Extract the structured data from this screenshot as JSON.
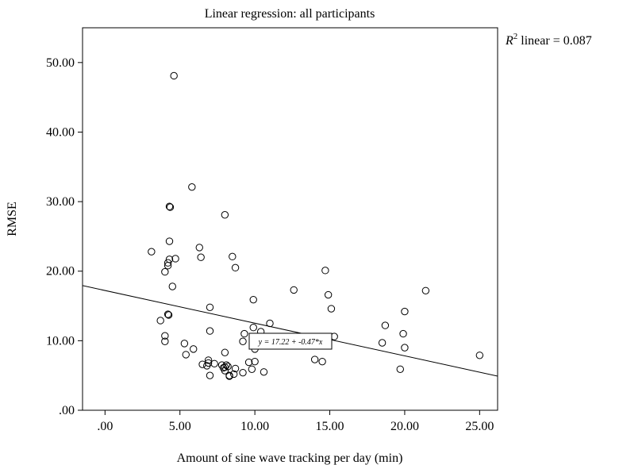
{
  "chart_data": {
    "type": "scatter",
    "title": "Linear regression: all participants",
    "xlabel": "Amount of sine wave tracking per day (min)",
    "ylabel": "RMSE",
    "xlim": [
      -1.5,
      26.2
    ],
    "ylim": [
      0,
      55.0
    ],
    "xticks": [
      ".00",
      "5.00",
      "10.00",
      "15.00",
      "20.00",
      "25.00"
    ],
    "xtick_values": [
      0,
      5,
      10,
      15,
      20,
      25
    ],
    "yticks": [
      ".00",
      "10.00",
      "20.00",
      "30.00",
      "40.00",
      "50.00"
    ],
    "ytick_values": [
      0,
      10,
      20,
      30,
      40,
      50
    ],
    "grid": false,
    "fit_line": {
      "intercept": 17.22,
      "slope": -0.47
    },
    "r2_label": {
      "symbol": "R",
      "superscript": "2",
      "text": " linear = 0.087"
    },
    "equation_label": "y = 17.22 + -0.47*x",
    "points": [
      {
        "x": 4.6,
        "y": 48.1
      },
      {
        "x": 5.8,
        "y": 32.1
      },
      {
        "x": 4.3,
        "y": 29.3
      },
      {
        "x": 4.35,
        "y": 29.2
      },
      {
        "x": 8.0,
        "y": 28.1
      },
      {
        "x": 4.3,
        "y": 24.3
      },
      {
        "x": 6.3,
        "y": 23.4
      },
      {
        "x": 3.1,
        "y": 22.8
      },
      {
        "x": 8.5,
        "y": 22.1
      },
      {
        "x": 6.4,
        "y": 22.0
      },
      {
        "x": 4.7,
        "y": 21.8
      },
      {
        "x": 4.3,
        "y": 21.7
      },
      {
        "x": 4.2,
        "y": 21.2
      },
      {
        "x": 4.2,
        "y": 20.8
      },
      {
        "x": 8.7,
        "y": 20.5
      },
      {
        "x": 14.7,
        "y": 20.1
      },
      {
        "x": 4.0,
        "y": 19.9
      },
      {
        "x": 4.5,
        "y": 17.8
      },
      {
        "x": 12.6,
        "y": 17.3
      },
      {
        "x": 21.4,
        "y": 17.2
      },
      {
        "x": 14.9,
        "y": 16.6
      },
      {
        "x": 9.9,
        "y": 15.9
      },
      {
        "x": 7.0,
        "y": 14.8
      },
      {
        "x": 15.1,
        "y": 14.6
      },
      {
        "x": 20.0,
        "y": 14.2
      },
      {
        "x": 4.2,
        "y": 13.8
      },
      {
        "x": 4.25,
        "y": 13.7
      },
      {
        "x": 3.7,
        "y": 12.9
      },
      {
        "x": 11.0,
        "y": 12.5
      },
      {
        "x": 18.7,
        "y": 12.2
      },
      {
        "x": 9.9,
        "y": 11.9
      },
      {
        "x": 7.0,
        "y": 11.4
      },
      {
        "x": 10.4,
        "y": 11.3
      },
      {
        "x": 9.3,
        "y": 11.0
      },
      {
        "x": 19.9,
        "y": 11.0
      },
      {
        "x": 4.0,
        "y": 10.7
      },
      {
        "x": 15.3,
        "y": 10.6
      },
      {
        "x": 4.0,
        "y": 9.9
      },
      {
        "x": 9.2,
        "y": 9.9
      },
      {
        "x": 18.5,
        "y": 9.7
      },
      {
        "x": 5.3,
        "y": 9.6
      },
      {
        "x": 20.0,
        "y": 9.0
      },
      {
        "x": 10.0,
        "y": 8.8
      },
      {
        "x": 5.9,
        "y": 8.8
      },
      {
        "x": 8.0,
        "y": 8.3
      },
      {
        "x": 5.4,
        "y": 8.0
      },
      {
        "x": 25.0,
        "y": 7.9
      },
      {
        "x": 14.0,
        "y": 7.3
      },
      {
        "x": 6.9,
        "y": 7.2
      },
      {
        "x": 10.0,
        "y": 7.0
      },
      {
        "x": 14.5,
        "y": 7.0
      },
      {
        "x": 9.6,
        "y": 6.9
      },
      {
        "x": 6.9,
        "y": 6.8
      },
      {
        "x": 7.3,
        "y": 6.7
      },
      {
        "x": 6.5,
        "y": 6.6
      },
      {
        "x": 7.8,
        "y": 6.5
      },
      {
        "x": 8.1,
        "y": 6.5
      },
      {
        "x": 6.8,
        "y": 6.4
      },
      {
        "x": 8.2,
        "y": 6.3
      },
      {
        "x": 8.0,
        "y": 6.2
      },
      {
        "x": 7.9,
        "y": 6.1
      },
      {
        "x": 8.7,
        "y": 6.0
      },
      {
        "x": 9.8,
        "y": 5.9
      },
      {
        "x": 19.7,
        "y": 5.9
      },
      {
        "x": 8.0,
        "y": 5.7
      },
      {
        "x": 10.6,
        "y": 5.5
      },
      {
        "x": 9.2,
        "y": 5.4
      },
      {
        "x": 8.6,
        "y": 5.2
      },
      {
        "x": 7.0,
        "y": 5.0
      },
      {
        "x": 8.3,
        "y": 5.0
      },
      {
        "x": 8.3,
        "y": 4.9
      }
    ]
  }
}
